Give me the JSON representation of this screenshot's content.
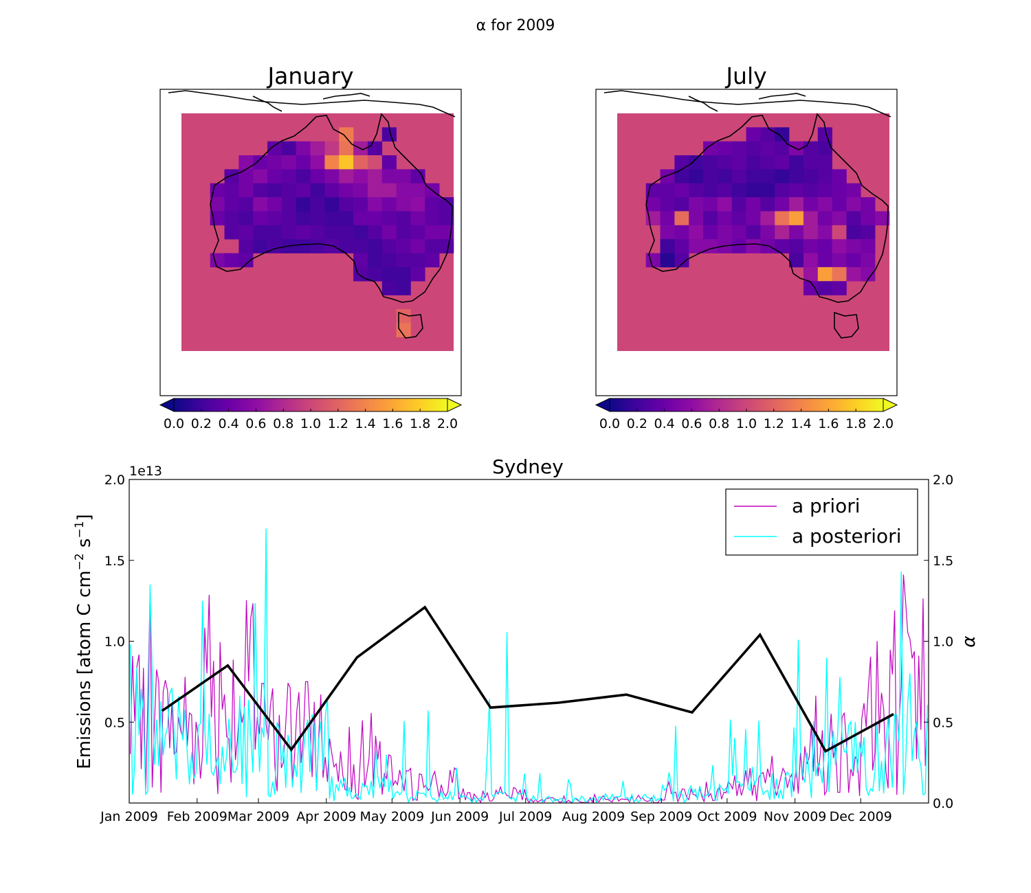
{
  "figure_title": "α for 2009",
  "chart_data": [
    {
      "type": "heatmap",
      "title": "January",
      "colorbar": {
        "colormap": "plasma",
        "range": [
          0.0,
          2.0
        ],
        "extend": "both",
        "ticks": [
          "0.0",
          "0.2",
          "0.4",
          "0.6",
          "0.8",
          "1.0",
          "1.2",
          "1.4",
          "1.6",
          "1.8",
          "2.0"
        ]
      },
      "background_value": 1.0,
      "grid": {
        "rows": 17,
        "cols": 19,
        "values": [
          [
            -1,
            -1,
            -1,
            -1,
            -1,
            -1,
            -1,
            -1,
            -1,
            -1,
            -1,
            -1,
            -1,
            -1,
            -1,
            -1,
            -1,
            -1,
            -1
          ],
          [
            -1,
            -1,
            -1,
            -1,
            -1,
            -1,
            -1,
            -1,
            -1,
            -1,
            -1,
            1.35,
            -1,
            -1,
            0.25,
            -1,
            -1,
            -1,
            -1
          ],
          [
            -1,
            -1,
            -1,
            -1,
            -1,
            -1,
            0.35,
            0.25,
            0.5,
            0.7,
            0.9,
            1.3,
            0.7,
            0.3,
            -1,
            -1,
            -1,
            -1,
            -1
          ],
          [
            -1,
            -1,
            -1,
            -1,
            0.55,
            0.4,
            0.45,
            0.5,
            0.4,
            0.6,
            1.4,
            1.75,
            1.2,
            1.05,
            0.35,
            -1,
            -1,
            -1,
            -1
          ],
          [
            -1,
            -1,
            -1,
            0.3,
            0.45,
            0.55,
            0.4,
            0.35,
            0.25,
            0.4,
            0.5,
            0.7,
            0.6,
            0.7,
            0.5,
            0.5,
            0.35,
            -1,
            -1
          ],
          [
            -1,
            -1,
            0.4,
            0.35,
            0.45,
            0.3,
            0.25,
            0.3,
            0.35,
            0.2,
            0.35,
            0.45,
            0.5,
            0.7,
            0.7,
            0.55,
            0.55,
            0.45,
            -1
          ],
          [
            -1,
            -1,
            0.5,
            0.35,
            0.3,
            0.55,
            0.45,
            0.3,
            0.15,
            0.25,
            0.15,
            0.3,
            0.35,
            0.55,
            0.45,
            0.55,
            0.6,
            0.35,
            0.3
          ],
          [
            -1,
            -1,
            0.4,
            0.3,
            0.25,
            0.4,
            0.35,
            0.3,
            0.2,
            0.25,
            0.2,
            0.2,
            0.4,
            0.4,
            0.35,
            0.3,
            0.45,
            0.35,
            0.3
          ],
          [
            -1,
            -1,
            -1,
            0.3,
            0.35,
            0.25,
            0.25,
            0.3,
            0.35,
            0.3,
            0.25,
            0.25,
            0.2,
            0.3,
            0.45,
            0.3,
            0.35,
            0.45,
            0.45
          ],
          [
            -1,
            -1,
            -1,
            -1,
            0.3,
            0.2,
            0.25,
            0.2,
            0.2,
            0.25,
            0.3,
            0.25,
            0.25,
            0.2,
            0.3,
            0.35,
            0.45,
            0.3,
            0.3
          ],
          [
            -1,
            -1,
            0.5,
            0.4,
            0.35,
            -1,
            -1,
            -1,
            -1,
            -1,
            -1,
            -1,
            0.35,
            0.2,
            0.25,
            0.3,
            0.3,
            0.35,
            -1
          ],
          [
            -1,
            -1,
            -1,
            -1,
            -1,
            -1,
            -1,
            -1,
            -1,
            -1,
            -1,
            -1,
            0.3,
            0.25,
            0.2,
            0.2,
            0.35,
            -1,
            -1
          ],
          [
            -1,
            -1,
            -1,
            -1,
            -1,
            -1,
            -1,
            -1,
            -1,
            -1,
            -1,
            -1,
            -1,
            -1,
            0.25,
            0.2,
            -1,
            -1,
            -1
          ],
          [
            -1,
            -1,
            -1,
            -1,
            -1,
            -1,
            -1,
            -1,
            -1,
            -1,
            -1,
            -1,
            -1,
            -1,
            -1,
            -1,
            -1,
            -1,
            -1
          ],
          [
            -1,
            -1,
            -1,
            -1,
            -1,
            -1,
            -1,
            -1,
            -1,
            -1,
            -1,
            -1,
            -1,
            -1,
            -1,
            1.2,
            -1,
            -1,
            -1
          ],
          [
            -1,
            -1,
            -1,
            -1,
            -1,
            -1,
            -1,
            -1,
            -1,
            -1,
            -1,
            -1,
            -1,
            -1,
            -1,
            1.3,
            -1,
            -1,
            -1
          ],
          [
            -1,
            -1,
            -1,
            -1,
            -1,
            -1,
            -1,
            -1,
            -1,
            -1,
            -1,
            -1,
            -1,
            -1,
            -1,
            -1,
            -1,
            -1,
            -1
          ]
        ]
      }
    },
    {
      "type": "heatmap",
      "title": "July",
      "colorbar": {
        "colormap": "plasma",
        "range": [
          0.0,
          2.0
        ],
        "extend": "both",
        "ticks": [
          "0.0",
          "0.2",
          "0.4",
          "0.6",
          "0.8",
          "1.0",
          "1.2",
          "1.4",
          "1.6",
          "1.8",
          "2.0"
        ]
      },
      "background_value": 1.0,
      "grid": {
        "rows": 17,
        "cols": 19,
        "values": [
          [
            -1,
            -1,
            -1,
            -1,
            -1,
            -1,
            -1,
            -1,
            -1,
            -1,
            -1,
            -1,
            -1,
            -1,
            -1,
            -1,
            -1,
            -1,
            -1
          ],
          [
            -1,
            -1,
            -1,
            -1,
            -1,
            -1,
            -1,
            -1,
            -1,
            0.4,
            0.3,
            0.15,
            -1,
            -1,
            0.3,
            -1,
            -1,
            -1,
            -1
          ],
          [
            -1,
            -1,
            -1,
            -1,
            -1,
            -1,
            0.45,
            0.4,
            0.35,
            0.3,
            0.35,
            0.3,
            0.5,
            0.3,
            0.25,
            -1,
            -1,
            -1,
            -1
          ],
          [
            -1,
            -1,
            -1,
            -1,
            0.3,
            0.2,
            0.25,
            0.3,
            0.35,
            0.25,
            0.3,
            0.35,
            0.2,
            0.3,
            0.3,
            -1,
            -1,
            -1,
            -1
          ],
          [
            -1,
            -1,
            -1,
            0.45,
            0.2,
            0.15,
            0.25,
            0.2,
            0.3,
            0.2,
            0.2,
            0.15,
            0.2,
            0.25,
            0.3,
            0.4,
            -1,
            -1,
            -1
          ],
          [
            -1,
            -1,
            0.35,
            0.35,
            0.4,
            0.3,
            0.25,
            0.3,
            0.2,
            0.15,
            0.15,
            0.3,
            0.35,
            0.3,
            0.35,
            0.4,
            0.45,
            -1,
            -1
          ],
          [
            -1,
            -1,
            0.45,
            0.35,
            0.3,
            0.5,
            0.45,
            0.6,
            0.3,
            0.45,
            0.3,
            0.45,
            0.7,
            0.45,
            0.55,
            0.4,
            0.55,
            0.45,
            -1
          ],
          [
            -1,
            -1,
            0.7,
            0.45,
            1.25,
            0.5,
            0.3,
            0.45,
            0.35,
            0.45,
            0.7,
            1.3,
            1.55,
            0.7,
            0.45,
            0.55,
            0.3,
            0.45,
            0.55
          ],
          [
            -1,
            -1,
            -1,
            0.5,
            0.45,
            0.6,
            0.4,
            0.5,
            0.45,
            0.3,
            0.5,
            0.75,
            0.5,
            0.7,
            0.55,
            1.0,
            0.25,
            0.3,
            -1
          ],
          [
            -1,
            -1,
            -1,
            0.2,
            0.35,
            0.55,
            0.55,
            0.5,
            0.4,
            0.55,
            0.45,
            0.35,
            0.3,
            0.45,
            0.4,
            0.6,
            0.5,
            0.45,
            -1
          ],
          [
            -1,
            -1,
            0.5,
            0.1,
            0.3,
            -1,
            -1,
            -1,
            -1,
            -1,
            -1,
            -1,
            0.25,
            0.6,
            0.4,
            0.5,
            0.4,
            0.5,
            -1
          ],
          [
            -1,
            -1,
            -1,
            -1,
            -1,
            -1,
            -1,
            -1,
            -1,
            -1,
            -1,
            -1,
            -1,
            0.65,
            1.55,
            1.3,
            0.65,
            0.55,
            -1
          ],
          [
            -1,
            -1,
            -1,
            -1,
            -1,
            -1,
            -1,
            -1,
            -1,
            -1,
            -1,
            -1,
            -1,
            0.4,
            0.3,
            0.35,
            -1,
            -1,
            -1
          ],
          [
            -1,
            -1,
            -1,
            -1,
            -1,
            -1,
            -1,
            -1,
            -1,
            -1,
            -1,
            -1,
            -1,
            -1,
            -1,
            -1,
            -1,
            -1,
            -1
          ],
          [
            -1,
            -1,
            -1,
            -1,
            -1,
            -1,
            -1,
            -1,
            -1,
            -1,
            -1,
            -1,
            -1,
            -1,
            -1,
            -1,
            -1,
            -1,
            -1
          ],
          [
            -1,
            -1,
            -1,
            -1,
            -1,
            -1,
            -1,
            -1,
            -1,
            -1,
            -1,
            -1,
            -1,
            -1,
            -1,
            -1,
            -1,
            -1,
            -1
          ],
          [
            -1,
            -1,
            -1,
            -1,
            -1,
            -1,
            -1,
            -1,
            -1,
            -1,
            -1,
            -1,
            -1,
            -1,
            -1,
            -1,
            -1,
            -1,
            -1
          ]
        ]
      }
    },
    {
      "type": "line",
      "title": "Sydney",
      "ylabel_left": "Emissions [atom C cm$^{-2}$ s$^{-1}$]",
      "ylabel_left_parts": [
        "Emissions [atom C cm",
        "−2",
        " s",
        "−1",
        "]"
      ],
      "ylabel_right": "α",
      "offset_text": "1e13",
      "ylim_left": [
        0.0,
        2.0
      ],
      "ylim_right": [
        0.0,
        2.0
      ],
      "yticks_left": [
        "0.5",
        "1.0",
        "1.5",
        "2.0"
      ],
      "yticks_right": [
        "0.0",
        "0.5",
        "1.0",
        "1.5",
        "2.0"
      ],
      "xlim": [
        "2009-01-01",
        "2009-12-31"
      ],
      "xticks": [
        "Jan 2009",
        "Feb 2009",
        "Mar 2009",
        "Apr 2009",
        "May 2009",
        "Jun 2009",
        "Jul 2009",
        "Aug 2009",
        "Sep 2009",
        "Oct 2009",
        "Nov 2009",
        "Dec 2009"
      ],
      "legend": {
        "placement": "top-right",
        "entries": [
          "a priori",
          "a posteriori"
        ]
      },
      "series": [
        {
          "name": "a priori",
          "color": "#bf00bf",
          "axis": "left",
          "x_start": "2009-01-01",
          "step_days": 1,
          "description_key": "daily emissions",
          "monthly_envelope": [
            0.8,
            1.1,
            0.7,
            0.45,
            0.18,
            0.07,
            0.03,
            0.03,
            0.08,
            0.2,
            0.6,
            0.95
          ],
          "monthly_peak": [
            1.4,
            1.85,
            0.75,
            0.6,
            0.22,
            0.1,
            0.05,
            0.06,
            0.15,
            0.45,
            1.55,
            1.45
          ]
        },
        {
          "name": "a posteriori",
          "color": "#00ffff",
          "axis": "left",
          "x_start": "2009-01-01",
          "step_days": 1,
          "monthly_envelope": [
            0.7,
            0.6,
            0.5,
            0.15,
            0.07,
            0.06,
            0.04,
            0.05,
            0.1,
            0.2,
            0.45,
            0.55
          ],
          "monthly_peak": [
            1.9,
            1.75,
            1.85,
            1.1,
            0.6,
            1.4,
            0.2,
            0.35,
            0.55,
            0.55,
            1.25,
            2.0
          ]
        },
        {
          "name": "",
          "color": "#000000",
          "axis": "right",
          "x": [
            "2009-01-16",
            "2009-02-15",
            "2009-03-16",
            "2009-04-15",
            "2009-05-16",
            "2009-06-15",
            "2009-07-16",
            "2009-08-16",
            "2009-09-15",
            "2009-10-16",
            "2009-11-15",
            "2009-12-16"
          ],
          "values": [
            0.57,
            0.85,
            0.33,
            0.9,
            1.21,
            0.59,
            0.62,
            0.67,
            0.56,
            1.04,
            0.32,
            0.55
          ]
        }
      ]
    }
  ]
}
